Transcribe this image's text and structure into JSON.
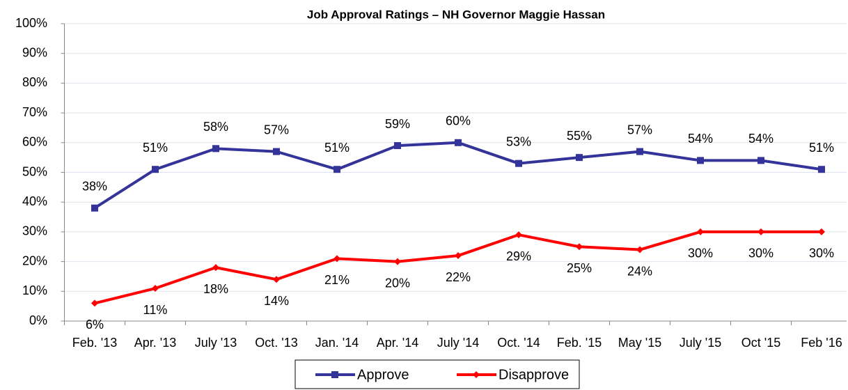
{
  "chart_data": {
    "type": "line",
    "title": "Job Approval Ratings – NH Governor Maggie Hassan",
    "categories": [
      "Feb. '13",
      "Apr. '13",
      "July '13",
      "Oct. '13",
      "Jan. '14",
      "Apr. '14",
      "July '14",
      "Oct. '14",
      "Feb. '15",
      "May '15",
      "July '15",
      "Oct '15",
      "Feb '16"
    ],
    "series": [
      {
        "name": "Approve",
        "color": "#333399",
        "marker": "square",
        "values": [
          38,
          51,
          58,
          57,
          51,
          59,
          60,
          53,
          55,
          57,
          54,
          54,
          51
        ],
        "value_labels": [
          "38%",
          "51%",
          "58%",
          "57%",
          "51%",
          "59%",
          "60%",
          "53%",
          "55%",
          "57%",
          "54%",
          "54%",
          "51%"
        ]
      },
      {
        "name": "Disapprove",
        "color": "#ff0000",
        "marker": "diamond",
        "values": [
          6,
          11,
          18,
          14,
          21,
          20,
          22,
          29,
          25,
          24,
          30,
          30,
          30
        ],
        "value_labels": [
          "6%",
          "11%",
          "18%",
          "14%",
          "21%",
          "20%",
          "22%",
          "29%",
          "25%",
          "24%",
          "30%",
          "30%",
          "30%"
        ]
      }
    ],
    "ylim": [
      0,
      100
    ],
    "yticks": [
      {
        "value": 0,
        "label": "0%"
      },
      {
        "value": 10,
        "label": "10%"
      },
      {
        "value": 20,
        "label": "20%"
      },
      {
        "value": 30,
        "label": "30%"
      },
      {
        "value": 40,
        "label": "40%"
      },
      {
        "value": 50,
        "label": "50%"
      },
      {
        "value": 60,
        "label": "60%"
      },
      {
        "value": 70,
        "label": "70%"
      },
      {
        "value": 80,
        "label": "80%"
      },
      {
        "value": 90,
        "label": "90%"
      },
      {
        "value": 100,
        "label": "100%"
      }
    ],
    "grid": true,
    "legend": "bottom"
  }
}
